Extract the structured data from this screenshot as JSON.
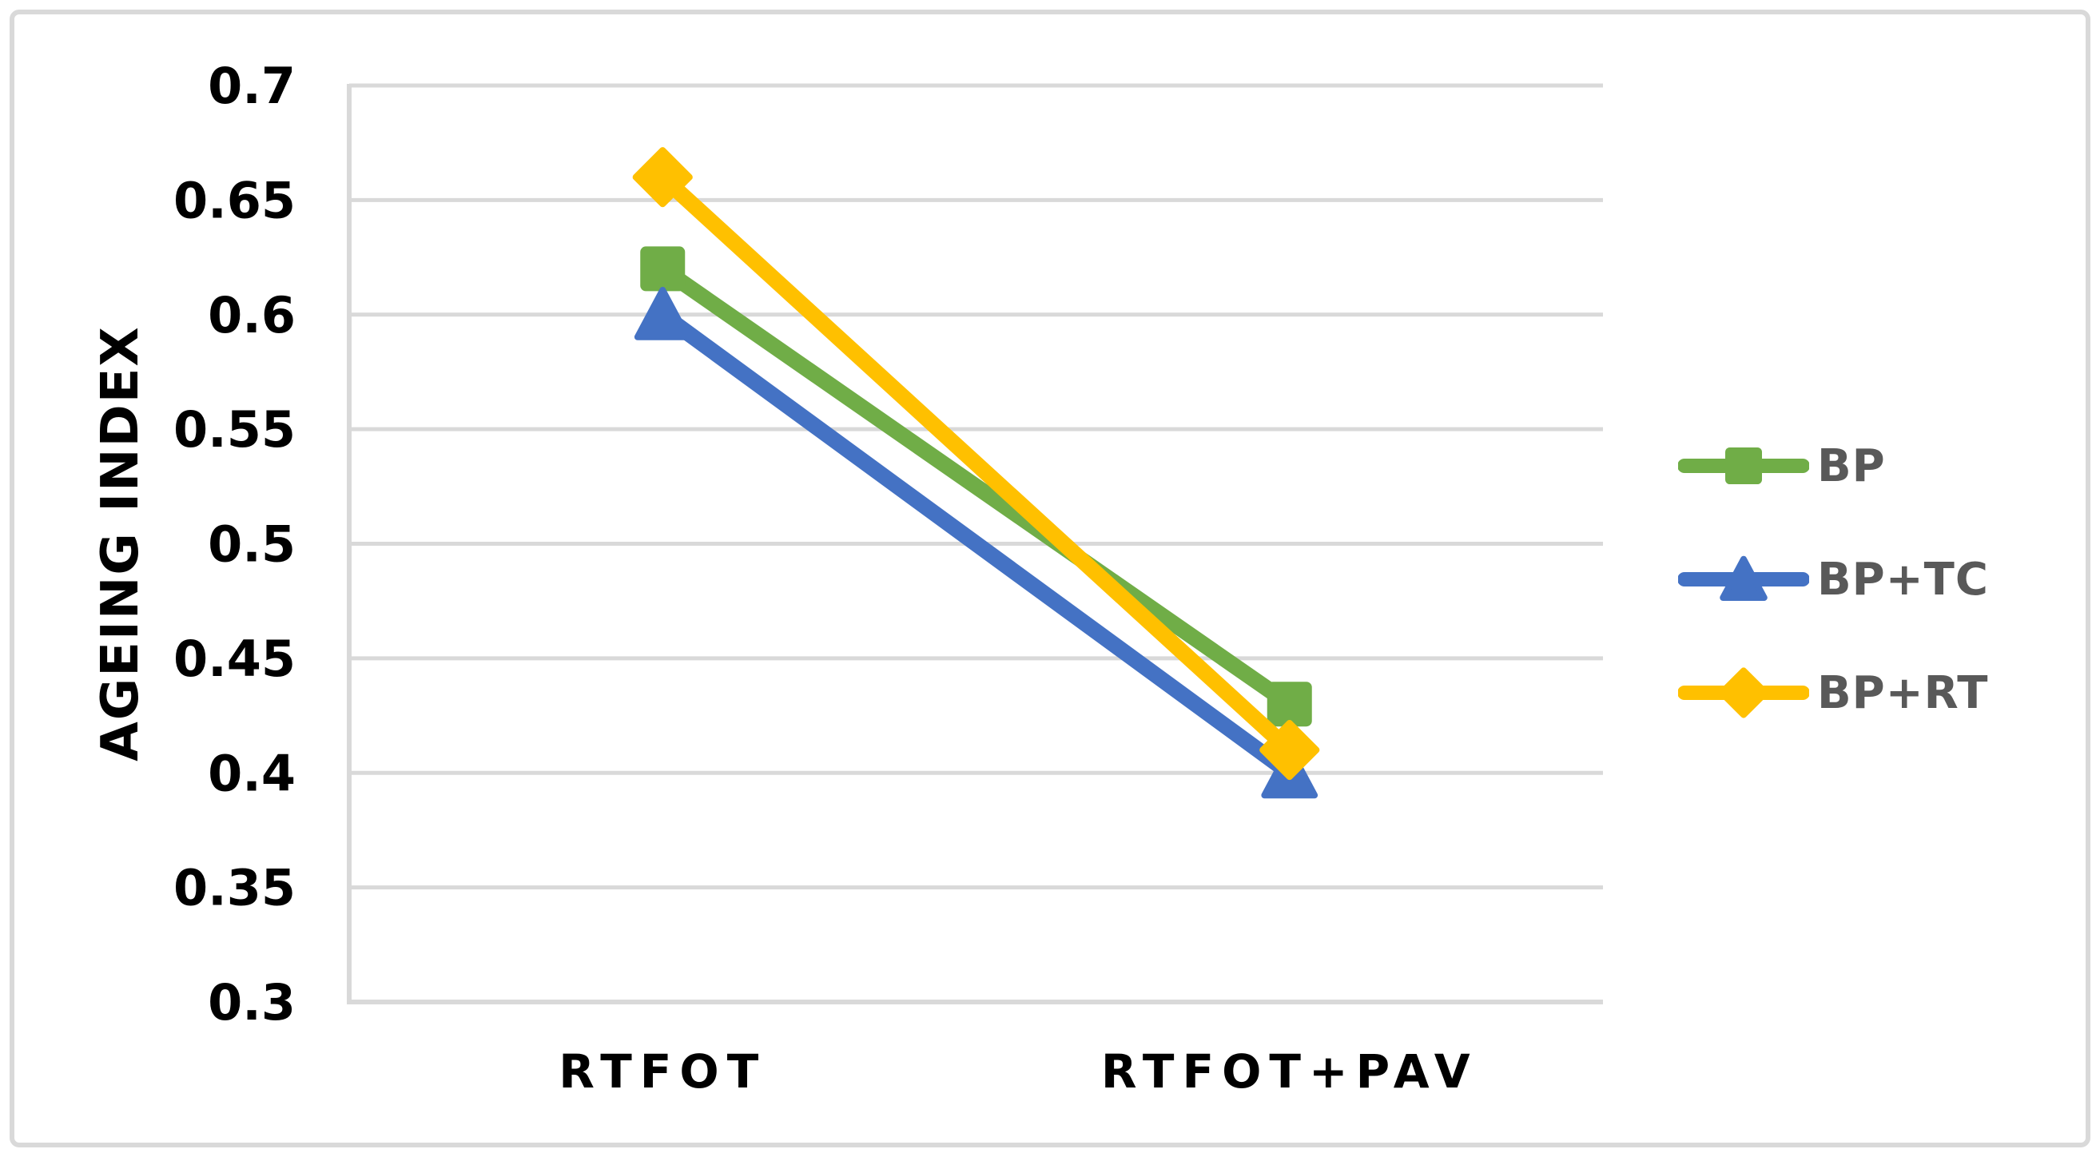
{
  "chart_data": {
    "type": "line",
    "categories": [
      "RTFOT",
      "RTFOT+PAV"
    ],
    "series": [
      {
        "name": "BP",
        "values": [
          0.62,
          0.43
        ],
        "color": "#70AD47",
        "marker": "square"
      },
      {
        "name": "BP+TC",
        "values": [
          0.6,
          0.4
        ],
        "color": "#4472C4",
        "marker": "triangle"
      },
      {
        "name": "BP+RT",
        "values": [
          0.66,
          0.41
        ],
        "color": "#FFC000",
        "marker": "diamond"
      }
    ],
    "title": "",
    "xlabel": "",
    "ylabel": "AGEING INDEX",
    "ylim": [
      0.3,
      0.7
    ],
    "y_ticks": [
      0.7,
      0.65,
      0.6,
      0.55,
      0.5,
      0.45,
      0.4,
      0.35,
      0.3
    ],
    "y_tick_labels": [
      "0.7",
      "0.65",
      "0.6",
      "0.55",
      "0.5",
      "0.45",
      "0.4",
      "0.35",
      "0.3"
    ],
    "grid": true,
    "legend_position": "right"
  },
  "colors": {
    "gridline": "#D9D9D9",
    "axis_line": "#D9D9D9",
    "tick_label": "#000000",
    "x_label": "#000000",
    "legend_text": "#595959",
    "border": "#D9D9D9",
    "background": "#FFFFFF"
  }
}
